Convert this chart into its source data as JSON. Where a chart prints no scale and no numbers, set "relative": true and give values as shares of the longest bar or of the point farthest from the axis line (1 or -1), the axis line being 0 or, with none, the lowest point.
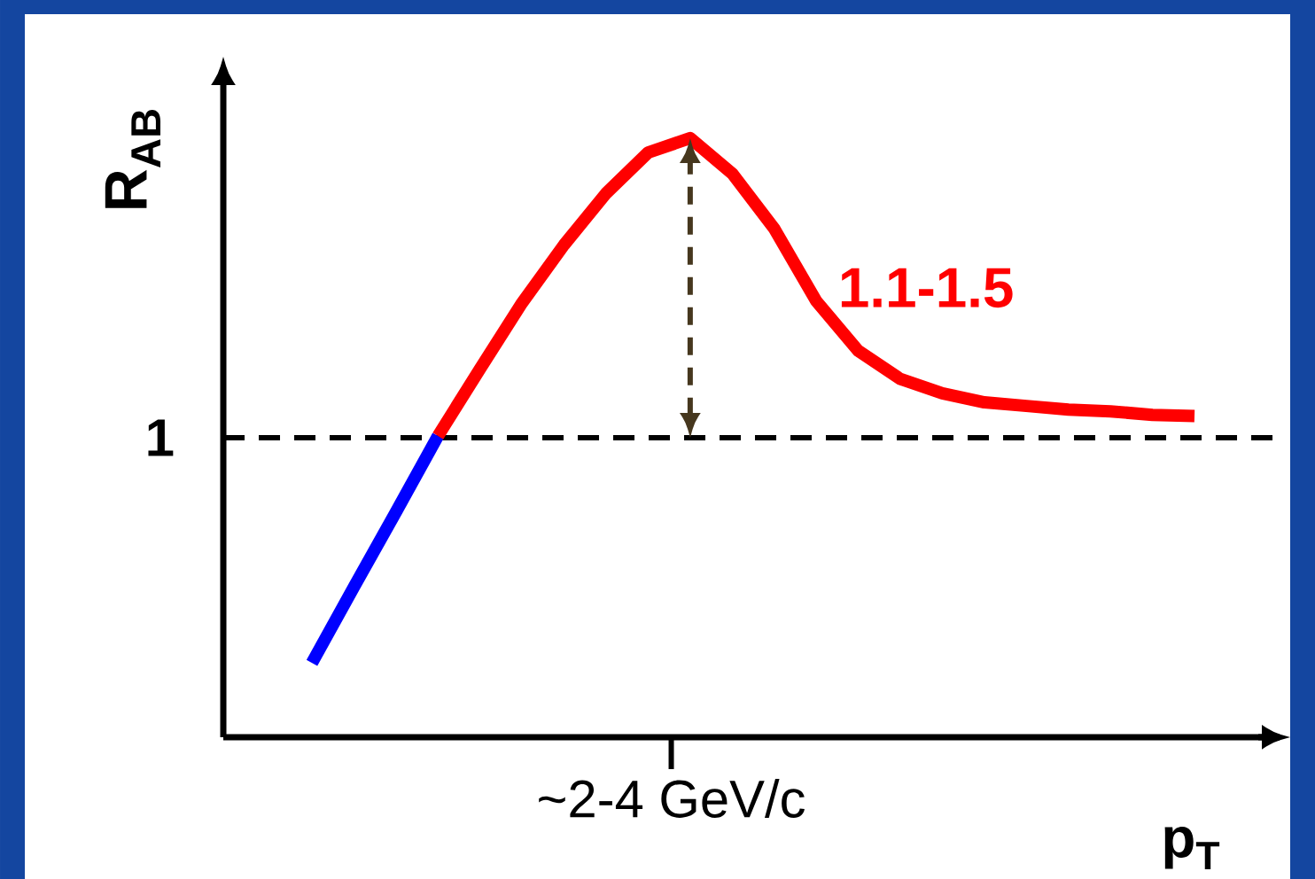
{
  "chart_data": {
    "type": "line",
    "relative": true,
    "ylabel": "R$_{AB}$",
    "xlabel": "p$_{T}$",
    "categories": [
      null,
      null,
      null,
      null,
      null,
      null,
      null,
      null,
      null,
      null,
      null,
      null,
      null,
      null,
      null,
      null,
      null,
      null,
      null,
      null,
      null,
      null
    ],
    "series": [
      {
        "color": "#0000ff",
        "values": [
          0.124,
          0.251,
          0.376,
          0.503,
          null,
          null,
          null,
          null,
          null,
          null,
          null,
          null,
          null,
          null,
          null,
          null,
          null,
          null,
          null,
          null,
          null,
          null
        ]
      },
      {
        "color": "#ff0000",
        "values": [
          null,
          null,
          null,
          0.503,
          0.615,
          0.725,
          0.822,
          0.908,
          0.976,
          1.0,
          0.941,
          0.849,
          0.728,
          0.645,
          0.598,
          0.574,
          0.559,
          0.553,
          0.547,
          0.544,
          0.538,
          0.536
        ]
      }
    ],
    "ref_lines": [
      {
        "axis": "y",
        "value": 0.5,
        "label": "1",
        "line_style": "dashed",
        "color": "#000000"
      }
    ],
    "annotations": [
      "1.1-1.5",
      "~2-4 GeV/c"
    ]
  }
}
